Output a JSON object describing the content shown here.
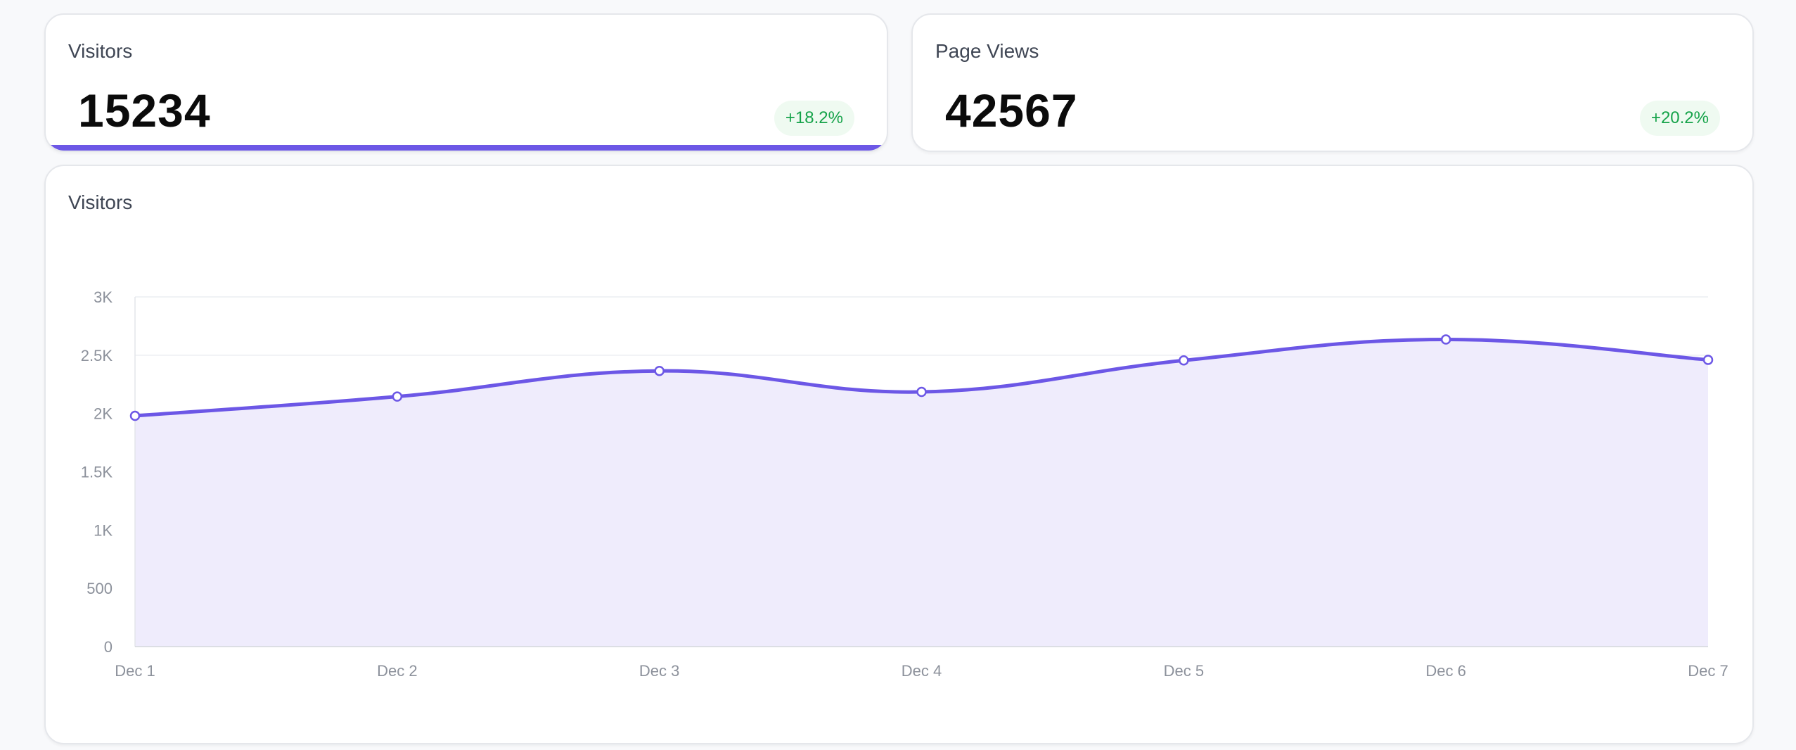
{
  "cards": [
    {
      "title": "Visitors",
      "value": "15234",
      "delta": "+18.2%"
    },
    {
      "title": "Page Views",
      "value": "42567",
      "delta": "+20.2%"
    }
  ],
  "chart_panel": {
    "title": "Visitors"
  },
  "colors": {
    "accent": "#6c57e6",
    "area_fill": "#efecfc",
    "positive": "#16a34a",
    "positive_bg": "#effaf1",
    "grid": "#eceef2"
  },
  "chart_data": {
    "type": "area",
    "title": "Visitors",
    "categories": [
      "Dec 1",
      "Dec 2",
      "Dec 3",
      "Dec 4",
      "Dec 5",
      "Dec 6",
      "Dec 7"
    ],
    "series": [
      {
        "values": [
          1980,
          2145,
          2365,
          2185,
          2455,
          2635,
          2460
        ]
      }
    ],
    "ylim": [
      0,
      3000
    ],
    "yticks": [
      0,
      500,
      1000,
      1500,
      2000,
      2500,
      3000
    ],
    "ytick_labels": [
      "0",
      "500",
      "1K",
      "1.5K",
      "2K",
      "2.5K",
      "3K"
    ],
    "grid": true,
    "xlabel": "",
    "ylabel": ""
  }
}
